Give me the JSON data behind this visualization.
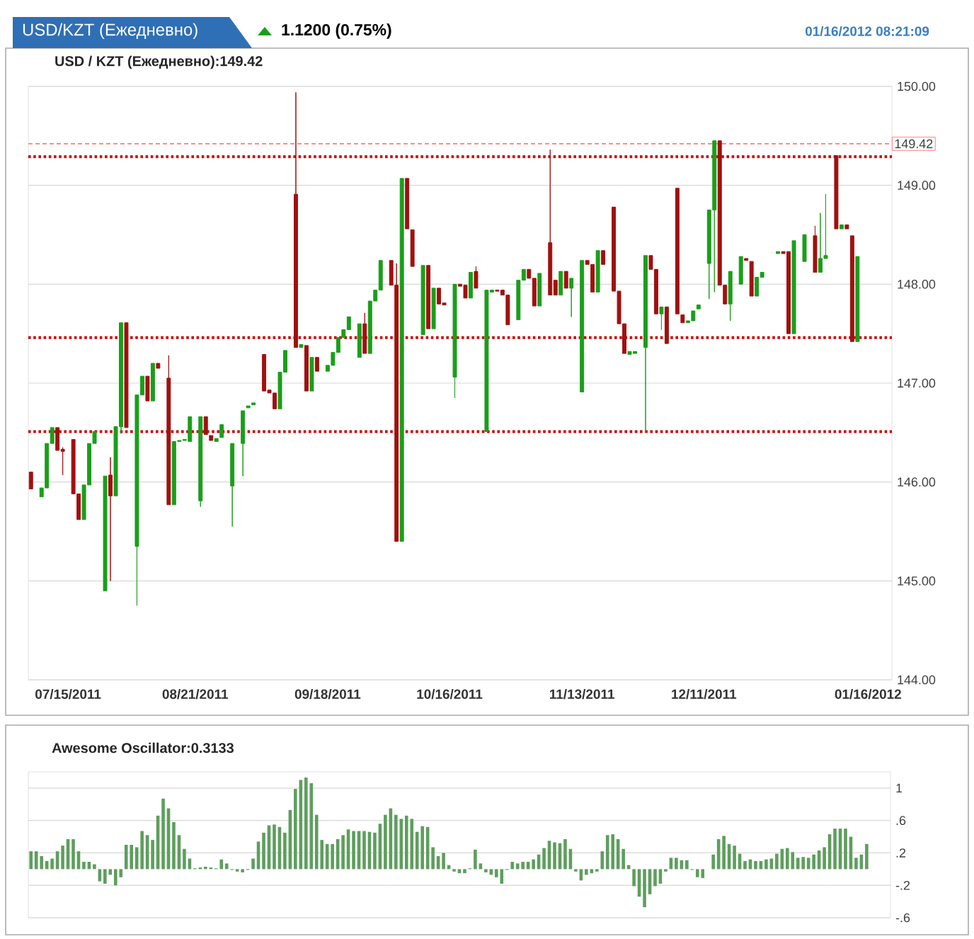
{
  "chart_data": [
    {
      "type": "candlestick",
      "title": "USD / KZT (Ежедневно):149.42",
      "annotations": [
        "USD/KZT (Ежедневно)",
        "1.1200 (0.75%)",
        "01/16/2012 08:21:09"
      ],
      "categories": [
        null,
        null,
        null,
        null,
        null,
        null,
        null,
        "07/15/2011",
        null,
        null,
        null,
        null,
        null,
        null,
        null,
        null,
        null,
        null,
        null,
        null,
        null,
        null,
        null,
        null,
        null,
        null,
        null,
        null,
        null,
        null,
        null,
        "08/21/2011",
        null,
        null,
        null,
        null,
        null,
        null,
        null,
        null,
        null,
        null,
        null,
        null,
        null,
        null,
        null,
        null,
        null,
        null,
        null,
        null,
        null,
        null,
        null,
        null,
        "09/18/2011",
        null,
        null,
        null,
        null,
        null,
        null,
        null,
        null,
        null,
        null,
        null,
        null,
        null,
        null,
        null,
        null,
        null,
        null,
        null,
        null,
        null,
        null,
        "10/16/2011",
        null,
        null,
        null,
        null,
        null,
        null,
        null,
        null,
        null,
        null,
        null,
        null,
        null,
        null,
        null,
        null,
        null,
        null,
        null,
        null,
        null,
        null,
        null,
        null,
        "11/13/2011",
        null,
        null,
        null,
        null,
        null,
        null,
        null,
        null,
        null,
        null,
        null,
        null,
        null,
        null,
        null,
        null,
        null,
        null,
        null,
        null,
        null,
        null,
        "12/11/2011",
        null,
        null,
        null,
        null,
        null,
        null,
        null,
        null,
        null,
        null,
        null,
        null,
        null,
        null,
        null,
        null,
        null,
        null,
        null,
        null,
        null,
        null,
        null,
        null,
        null,
        null,
        null,
        null,
        null,
        null,
        "01/16/2012",
        null,
        null,
        null,
        null
      ],
      "ohlc": [
        [
          146.1,
          146.1,
          145.93,
          145.93
        ],
        null,
        [
          145.85,
          145.94,
          145.85,
          145.94
        ],
        [
          145.94,
          146.39,
          145.94,
          146.39
        ],
        [
          146.39,
          146.55,
          146.39,
          146.55
        ],
        [
          146.55,
          146.55,
          146.32,
          146.32
        ],
        [
          146.33,
          146.35,
          146.07,
          146.31
        ],
        null,
        [
          146.43,
          146.43,
          145.88,
          145.88
        ],
        [
          145.88,
          145.88,
          145.62,
          145.62
        ],
        [
          145.62,
          145.97,
          145.62,
          145.97
        ],
        [
          145.97,
          146.39,
          145.97,
          146.39
        ],
        [
          146.39,
          146.51,
          146.39,
          146.51
        ],
        null,
        [
          144.9,
          146.06,
          144.9,
          146.06
        ],
        [
          146.07,
          146.25,
          145.0,
          145.86
        ],
        [
          145.86,
          146.56,
          145.86,
          146.56
        ],
        [
          146.56,
          147.61,
          146.49,
          147.61
        ],
        [
          147.61,
          147.61,
          146.55,
          146.55
        ],
        null,
        [
          145.35,
          146.88,
          144.75,
          146.88
        ],
        [
          146.88,
          147.07,
          146.88,
          147.07
        ],
        [
          147.07,
          147.07,
          146.82,
          146.82
        ],
        [
          146.82,
          147.2,
          146.82,
          147.2
        ],
        [
          147.2,
          147.2,
          147.15,
          147.15
        ],
        null,
        [
          147.05,
          147.28,
          145.77,
          145.77
        ],
        [
          145.77,
          146.41,
          145.77,
          146.41
        ],
        [
          146.41,
          146.42,
          146.41,
          146.42
        ],
        [
          146.42,
          146.43,
          146.42,
          146.43
        ],
        [
          146.41,
          146.66,
          146.41,
          146.66
        ],
        null,
        [
          145.81,
          146.66,
          145.75,
          146.66
        ],
        [
          146.66,
          146.66,
          146.48,
          146.48
        ],
        [
          146.47,
          146.47,
          146.42,
          146.42
        ],
        [
          146.41,
          146.44,
          146.41,
          146.44
        ],
        [
          146.45,
          146.58,
          146.45,
          146.58
        ],
        null,
        [
          145.96,
          146.39,
          145.55,
          146.39
        ],
        null,
        [
          146.39,
          146.72,
          146.06,
          146.72
        ],
        [
          146.75,
          146.77,
          146.75,
          146.77
        ],
        [
          146.78,
          146.8,
          146.78,
          146.8
        ],
        null,
        [
          147.29,
          147.29,
          146.92,
          146.92
        ],
        [
          146.93,
          146.93,
          146.9,
          146.9
        ],
        [
          146.9,
          146.9,
          146.74,
          146.74
        ],
        [
          146.74,
          147.11,
          146.74,
          147.11
        ],
        [
          147.11,
          147.33,
          147.11,
          147.33
        ],
        null,
        [
          148.91,
          149.94,
          147.36,
          147.36
        ],
        [
          147.36,
          147.39,
          147.36,
          147.39
        ],
        [
          147.38,
          147.38,
          146.92,
          146.92
        ],
        [
          146.92,
          147.26,
          146.92,
          147.26
        ],
        [
          147.26,
          147.26,
          147.12,
          147.12
        ],
        null,
        [
          147.12,
          147.18,
          147.12,
          147.18
        ],
        [
          147.18,
          147.31,
          147.18,
          147.31
        ],
        [
          147.31,
          147.46,
          147.31,
          147.46
        ],
        [
          147.46,
          147.54,
          147.46,
          147.54
        ],
        [
          147.54,
          147.67,
          147.54,
          147.67
        ],
        null,
        [
          147.26,
          147.6,
          147.26,
          147.6
        ],
        [
          147.6,
          147.71,
          147.3,
          147.3
        ],
        [
          147.3,
          147.83,
          147.3,
          147.83
        ],
        [
          147.83,
          147.94,
          147.83,
          147.94
        ],
        [
          147.94,
          148.24,
          147.94,
          148.24
        ],
        null,
        [
          148.24,
          148.24,
          147.99,
          147.99
        ],
        [
          147.99,
          148.21,
          145.4,
          145.4
        ],
        [
          145.4,
          149.07,
          145.4,
          149.07
        ],
        [
          149.07,
          149.07,
          148.56,
          148.56
        ],
        [
          148.55,
          148.55,
          148.18,
          148.18
        ],
        null,
        [
          147.49,
          148.19,
          147.49,
          148.19
        ],
        [
          148.19,
          148.19,
          147.55,
          147.55
        ],
        [
          147.55,
          147.96,
          147.55,
          147.96
        ],
        [
          147.96,
          147.96,
          147.8,
          147.8
        ],
        [
          147.81,
          147.81,
          147.79,
          147.79
        ],
        null,
        [
          147.06,
          148.0,
          146.85,
          148.0
        ],
        [
          148.0,
          148.0,
          147.98,
          147.98
        ],
        [
          147.99,
          147.99,
          147.86,
          147.86
        ],
        [
          147.86,
          148.12,
          147.86,
          148.12
        ],
        [
          148.13,
          148.18,
          147.96,
          147.96
        ],
        null,
        [
          146.51,
          147.94,
          146.51,
          147.94
        ],
        [
          147.92,
          147.94,
          147.92,
          147.94
        ],
        [
          147.94,
          147.94,
          147.93,
          147.93
        ],
        [
          147.94,
          147.94,
          147.89,
          147.89
        ],
        [
          147.89,
          147.89,
          147.59,
          147.59
        ],
        null,
        [
          147.64,
          148.04,
          147.64,
          148.04
        ],
        [
          148.04,
          148.15,
          148.04,
          148.15
        ],
        [
          148.15,
          148.15,
          148.06,
          148.06
        ],
        [
          148.06,
          148.06,
          147.78,
          147.78
        ],
        [
          147.78,
          148.11,
          147.78,
          148.11
        ],
        null,
        [
          148.42,
          149.36,
          147.89,
          147.89
        ],
        [
          148.04,
          148.04,
          147.89,
          147.89
        ],
        [
          147.89,
          148.13,
          147.89,
          148.13
        ],
        [
          148.13,
          148.13,
          147.96,
          147.96
        ],
        [
          147.96,
          148.06,
          147.67,
          148.06
        ],
        null,
        [
          146.91,
          148.24,
          146.91,
          148.24
        ],
        [
          148.24,
          148.24,
          148.2,
          148.2
        ],
        [
          148.2,
          148.2,
          147.92,
          147.92
        ],
        [
          147.92,
          148.34,
          147.92,
          148.34
        ],
        [
          148.34,
          148.34,
          148.2,
          148.2
        ],
        null,
        [
          148.78,
          148.78,
          147.93,
          147.93
        ],
        [
          147.93,
          147.93,
          147.6,
          147.6
        ],
        [
          147.6,
          147.6,
          147.3,
          147.3
        ],
        [
          147.29,
          147.32,
          147.29,
          147.32
        ],
        [
          147.3,
          147.32,
          147.3,
          147.32
        ],
        null,
        [
          147.36,
          148.29,
          146.5,
          148.29
        ],
        [
          148.29,
          148.29,
          148.15,
          148.15
        ],
        [
          148.15,
          148.15,
          147.7,
          147.7
        ],
        [
          147.7,
          147.77,
          147.54,
          147.77
        ],
        [
          147.77,
          147.77,
          147.4,
          147.4
        ],
        null,
        [
          148.97,
          148.97,
          147.7,
          147.7
        ],
        [
          147.69,
          147.69,
          147.61,
          147.61
        ],
        [
          147.61,
          147.63,
          147.61,
          147.63
        ],
        [
          147.63,
          147.73,
          147.63,
          147.73
        ],
        [
          147.75,
          147.79,
          147.75,
          147.79
        ],
        null,
        [
          148.21,
          148.75,
          147.85,
          148.75
        ],
        [
          148.75,
          149.45,
          147.92,
          149.45
        ],
        [
          149.45,
          149.45,
          147.99,
          147.99
        ],
        [
          147.99,
          147.99,
          147.8,
          147.8
        ],
        [
          147.8,
          148.13,
          147.63,
          148.13
        ],
        null,
        [
          148.0,
          148.28,
          148.0,
          148.28
        ],
        [
          148.26,
          148.26,
          148.24,
          148.24
        ],
        [
          148.23,
          148.23,
          147.88,
          147.88
        ],
        [
          147.88,
          148.07,
          147.88,
          148.07
        ],
        [
          148.07,
          148.12,
          148.07,
          148.12
        ],
        null,
        null,
        [
          148.31,
          148.33,
          148.31,
          148.33
        ],
        [
          148.33,
          148.33,
          148.31,
          148.31
        ],
        [
          148.33,
          148.33,
          147.5,
          147.5
        ],
        [
          147.5,
          148.44,
          147.5,
          148.44
        ],
        null,
        [
          148.23,
          148.5,
          148.23,
          148.5
        ],
        null,
        [
          148.49,
          148.59,
          148.12,
          148.12
        ],
        [
          148.12,
          148.72,
          148.12,
          148.26
        ],
        [
          148.26,
          148.91,
          148.26,
          148.29
        ],
        null,
        [
          149.3,
          149.3,
          148.56,
          148.56
        ],
        [
          148.56,
          148.6,
          148.56,
          148.6
        ],
        [
          148.6,
          148.6,
          148.56,
          148.56
        ],
        [
          148.49,
          148.49,
          147.42,
          147.42
        ],
        [
          147.42,
          148.28,
          147.42,
          148.28
        ],
        null,
        null,
        null,
        null,
        null,
        null
      ],
      "ylim": [
        144,
        150
      ],
      "yticks": [
        {
          "value": 144,
          "label": "144.00"
        },
        {
          "value": 145,
          "label": "145.00"
        },
        {
          "value": 146,
          "label": "146.00"
        },
        {
          "value": 147,
          "label": "147.00"
        },
        {
          "value": 148,
          "label": "148.00"
        },
        {
          "value": 149,
          "label": "149.00"
        },
        {
          "value": 150,
          "label": "150.00"
        }
      ],
      "grid": "y",
      "ref_lines": [
        {
          "axis": "y",
          "value": 149.42,
          "label": "149.42",
          "color": "#ff6666",
          "line_style": "dashed"
        },
        {
          "axis": "y",
          "value": 149.29,
          "color": "#cc0000",
          "line_style": "dotted"
        },
        {
          "axis": "y",
          "value": 147.46,
          "color": "#cc0000",
          "line_style": "dotted"
        },
        {
          "axis": "y",
          "value": 146.51,
          "color": "#cc0000",
          "line_style": "dotted"
        }
      ]
    },
    {
      "type": "bar",
      "title": "Awesome Oscillator:0.3133",
      "color": "#5e9e5e",
      "categories": [
        null,
        null,
        null,
        null,
        null,
        null,
        null,
        null,
        null,
        null,
        null,
        null,
        null,
        null,
        null,
        null,
        null,
        null,
        null,
        null,
        null,
        null,
        null,
        null,
        null,
        null,
        null,
        null,
        null,
        null,
        null,
        null,
        null,
        null,
        null,
        null,
        null,
        null,
        null,
        null,
        null,
        null,
        null,
        null,
        null,
        null,
        null,
        null,
        null,
        null,
        null,
        null,
        null,
        null,
        null,
        null,
        null,
        null,
        null,
        null,
        null,
        null,
        null,
        null,
        null,
        null,
        null,
        null,
        null,
        null,
        null,
        null,
        null,
        null,
        null,
        null,
        null,
        null,
        null,
        null,
        null,
        null,
        null,
        null,
        null,
        null,
        null,
        null,
        null,
        null,
        null,
        null,
        null,
        null,
        null,
        null,
        null,
        null,
        null,
        null,
        null,
        null,
        null,
        null,
        null,
        null,
        null,
        null,
        null,
        null,
        null,
        null,
        null,
        null,
        null,
        null,
        null,
        null,
        null,
        null,
        null,
        null,
        null,
        null,
        null,
        null,
        null,
        null,
        null,
        null,
        null,
        null,
        null,
        null,
        null,
        null,
        null,
        null,
        null,
        null,
        null,
        null,
        null,
        null,
        null,
        null,
        null,
        null,
        null,
        null,
        null,
        null,
        null,
        null,
        null,
        null,
        null,
        null,
        null,
        null,
        null,
        null,
        null
      ],
      "values": [
        0.22,
        0.22,
        0.16,
        0.1,
        0.13,
        0.22,
        0.29,
        0.37,
        0.37,
        0.22,
        0.09,
        0.09,
        0.06,
        -0.15,
        -0.18,
        -0.07,
        -0.2,
        -0.1,
        0.3,
        0.3,
        0.27,
        0.47,
        0.42,
        0.36,
        0.66,
        0.87,
        0.75,
        0.58,
        0.42,
        0.25,
        0.13,
        0.01,
        0.02,
        0.03,
        0.02,
        0.01,
        0.12,
        0.07,
        -0.01,
        -0.03,
        -0.04,
        -0.01,
        0.13,
        0.34,
        0.45,
        0.54,
        0.55,
        0.52,
        0.45,
        0.73,
        0.99,
        1.1,
        1.13,
        1.06,
        0.67,
        0.36,
        0.31,
        0.31,
        0.37,
        0.42,
        0.49,
        0.47,
        0.47,
        0.47,
        0.46,
        0.45,
        0.56,
        0.67,
        0.75,
        0.67,
        0.62,
        0.66,
        0.62,
        0.46,
        0.53,
        0.52,
        0.27,
        0.16,
        0.2,
        0.05,
        -0.03,
        -0.05,
        -0.05,
        0.01,
        0.24,
        0.07,
        -0.04,
        -0.07,
        -0.1,
        -0.18,
        -0.01,
        0.09,
        0.07,
        0.09,
        0.09,
        0.12,
        0.18,
        0.26,
        0.35,
        0.33,
        0.32,
        0.37,
        0.25,
        -0.03,
        -0.14,
        -0.07,
        -0.05,
        -0.03,
        0.22,
        0.42,
        0.43,
        0.37,
        0.25,
        0.05,
        -0.21,
        -0.34,
        -0.47,
        -0.31,
        -0.21,
        -0.18,
        -0.03,
        0.14,
        0.14,
        0.11,
        0.11,
        -0.01,
        -0.1,
        -0.11,
        0.0,
        0.18,
        0.37,
        0.41,
        0.31,
        0.29,
        0.19,
        0.1,
        0.12,
        0.1,
        0.1,
        0.12,
        0.13,
        0.19,
        0.25,
        0.26,
        0.21,
        0.14,
        0.15,
        0.14,
        0.18,
        0.23,
        0.27,
        0.43,
        0.5,
        0.5,
        0.5,
        0.4,
        0.14,
        0.18,
        0.31,
        null,
        null,
        null,
        null
      ],
      "ylim": [
        -0.6,
        1.2
      ],
      "yticks": [
        {
          "value": -0.6,
          "label": "-.6"
        },
        {
          "value": -0.2,
          "label": "-.2"
        },
        {
          "value": 0.2,
          "label": ".2"
        },
        {
          "value": 0.6,
          "label": ".6"
        },
        1
      ],
      "grid": "y"
    }
  ]
}
